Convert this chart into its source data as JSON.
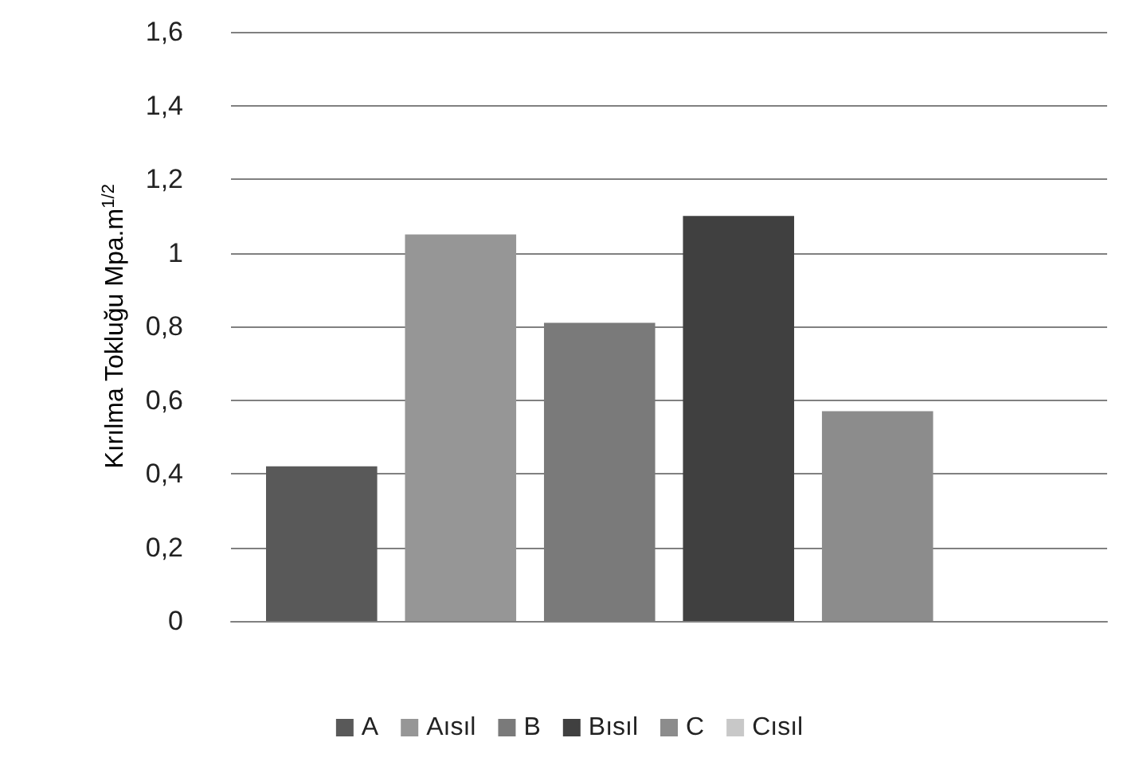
{
  "chart_data": {
    "type": "bar",
    "ylabel": "Kırılma Tokluğu Mpa.m$^{1/2}$",
    "categories": [
      null
    ],
    "series": [
      {
        "name": "A",
        "color": "#595959",
        "values": [
          0.42
        ]
      },
      {
        "name": "Aısıl",
        "color": "#969696",
        "values": [
          1.05
        ]
      },
      {
        "name": "B",
        "color": "#7a7a7a",
        "values": [
          0.81
        ]
      },
      {
        "name": "Bısıl",
        "color": "#404040",
        "values": [
          1.1
        ]
      },
      {
        "name": "C",
        "color": "#8c8c8c",
        "values": [
          0.57
        ]
      },
      {
        "name": "Cısıl",
        "color": "#c8c8c8",
        "values": [
          null
        ]
      }
    ],
    "ylim": [
      0,
      1.6
    ],
    "yticks": [
      0,
      {
        "value": 0.2,
        "label": "0,2"
      },
      {
        "value": 0.4,
        "label": "0,4"
      },
      {
        "value": 0.6,
        "label": "0,6"
      },
      {
        "value": 0.8,
        "label": "0,8"
      },
      1,
      {
        "value": 1.2,
        "label": "1,2"
      },
      {
        "value": 1.4,
        "label": "1,4"
      },
      {
        "value": 1.6,
        "label": "1,6"
      }
    ],
    "grid": "y",
    "legend": "bottom"
  }
}
